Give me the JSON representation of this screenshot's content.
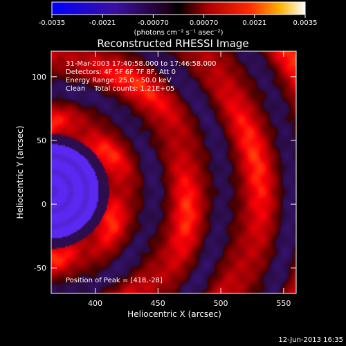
{
  "chart_data": {
    "type": "heatmap",
    "title": "Reconstructed RHESSI Image",
    "xlabel": "Heliocentric X (arcsec)",
    "ylabel": "Heliocentric Y (arcsec)",
    "xlim": [
      365,
      560
    ],
    "ylim": [
      -70,
      120
    ],
    "xticks": [
      400,
      450,
      500,
      550
    ],
    "yticks": [
      -50,
      0,
      50,
      100
    ],
    "colorbar": {
      "min": -0.0035,
      "max": 0.0035,
      "tick_values": [
        -0.0035,
        -0.0021,
        -0.0007,
        0.0007,
        0.0021,
        0.0035
      ],
      "tick_labels": [
        "-0.0035",
        "-0.0021",
        "-0.00070",
        "0.00070",
        "0.0021",
        "0.0035"
      ],
      "unit_label": "(photons cm⁻² s⁻¹ asec⁻²)"
    },
    "annotations": {
      "time_range": "31-Mar-2003 17:40:58.000 to 17:46:58.000",
      "detectors": "Detectors: 4F 5F 6F 7F 8F, Att 0",
      "energy_range": "Energy Range: 25.0 - 50.0 keV",
      "clean_counts": "Clean    Total counts: 1.21E+05",
      "peak": "Position of Peak = [418,-28]"
    },
    "source": {
      "x": 365,
      "y": 10,
      "description_value": "negative core"
    },
    "ring_period_arcsec": 55,
    "footer_date": "12-Jun-2013 16:35"
  }
}
